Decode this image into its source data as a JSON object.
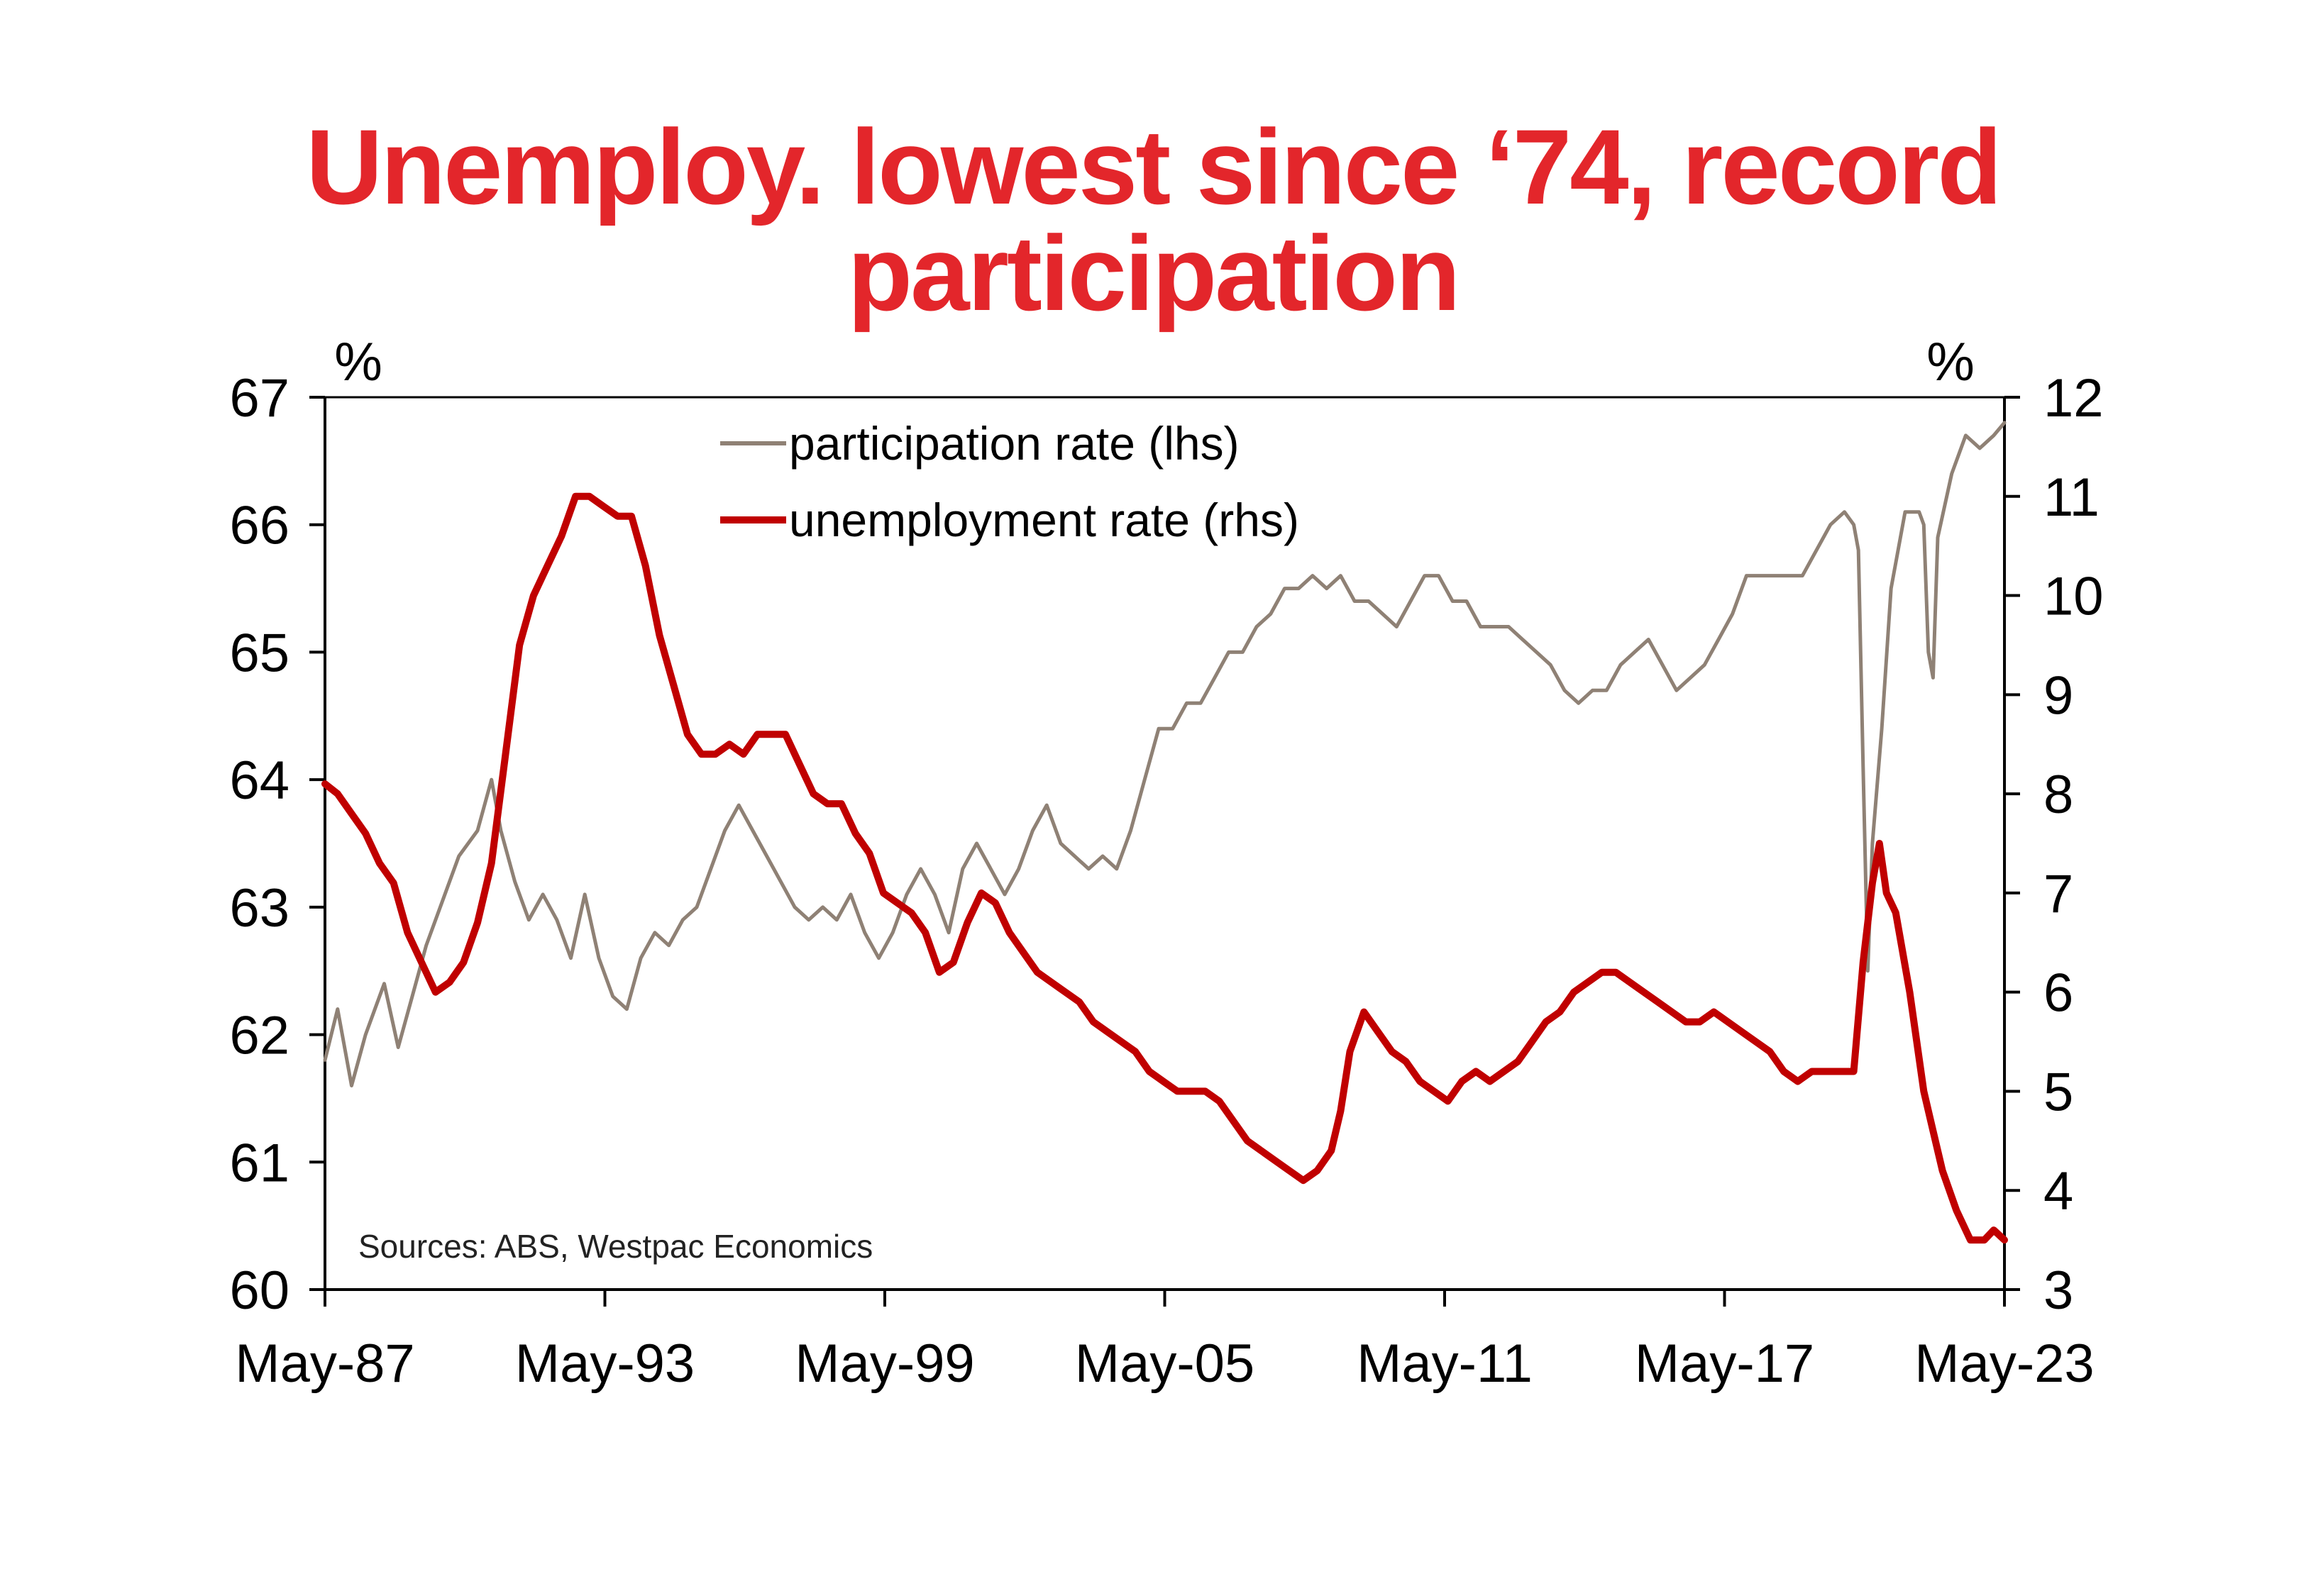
{
  "title": "Unemploy. lowest since ‘74, record participation",
  "colors": {
    "title": "#e3262b",
    "participation": "#8f8175",
    "unemployment": "#c00000",
    "axis": "#000000"
  },
  "chart_data": {
    "type": "line",
    "title": "Unemploy. lowest since ‘74, record participation",
    "left_unit": "%",
    "right_unit": "%",
    "source": "Sources: ABS, Westpac Economics",
    "ylim_left": [
      60,
      67
    ],
    "ylim_right": [
      3,
      12
    ],
    "yticks_left": [
      "60",
      "61",
      "62",
      "63",
      "64",
      "65",
      "66",
      "67"
    ],
    "yticks_right": [
      "3",
      "4",
      "5",
      "6",
      "7",
      "8",
      "9",
      "10",
      "11",
      "12"
    ],
    "xlim": [
      1987.33,
      2023.33
    ],
    "xticks": [
      {
        "x": 1987.33,
        "label": "May-87"
      },
      {
        "x": 1993.33,
        "label": "May-93"
      },
      {
        "x": 1999.33,
        "label": "May-99"
      },
      {
        "x": 2005.33,
        "label": "May-05"
      },
      {
        "x": 2011.33,
        "label": "May-11"
      },
      {
        "x": 2017.33,
        "label": "May-17"
      },
      {
        "x": 2023.33,
        "label": "May-23"
      }
    ],
    "series": [
      {
        "name": "participation rate (lhs)",
        "axis": "left",
        "points": [
          [
            1987.33,
            61.8
          ],
          [
            1987.6,
            62.2
          ],
          [
            1987.9,
            61.6
          ],
          [
            1988.2,
            62.0
          ],
          [
            1988.6,
            62.4
          ],
          [
            1988.9,
            61.9
          ],
          [
            1989.2,
            62.3
          ],
          [
            1989.5,
            62.7
          ],
          [
            1989.9,
            63.1
          ],
          [
            1990.2,
            63.4
          ],
          [
            1990.6,
            63.6
          ],
          [
            1990.9,
            64.0
          ],
          [
            1991.1,
            63.6
          ],
          [
            1991.4,
            63.2
          ],
          [
            1991.7,
            62.9
          ],
          [
            1992.0,
            63.1
          ],
          [
            1992.3,
            62.9
          ],
          [
            1992.6,
            62.6
          ],
          [
            1992.9,
            63.1
          ],
          [
            1993.2,
            62.6
          ],
          [
            1993.5,
            62.3
          ],
          [
            1993.8,
            62.2
          ],
          [
            1994.1,
            62.6
          ],
          [
            1994.4,
            62.8
          ],
          [
            1994.7,
            62.7
          ],
          [
            1995.0,
            62.9
          ],
          [
            1995.3,
            63.0
          ],
          [
            1995.6,
            63.3
          ],
          [
            1995.9,
            63.6
          ],
          [
            1996.2,
            63.8
          ],
          [
            1996.5,
            63.6
          ],
          [
            1996.8,
            63.4
          ],
          [
            1997.1,
            63.2
          ],
          [
            1997.4,
            63.0
          ],
          [
            1997.7,
            62.9
          ],
          [
            1998.0,
            63.0
          ],
          [
            1998.3,
            62.9
          ],
          [
            1998.6,
            63.1
          ],
          [
            1998.9,
            62.8
          ],
          [
            1999.2,
            62.6
          ],
          [
            1999.5,
            62.8
          ],
          [
            1999.8,
            63.1
          ],
          [
            2000.1,
            63.3
          ],
          [
            2000.4,
            63.1
          ],
          [
            2000.7,
            62.8
          ],
          [
            2001.0,
            63.3
          ],
          [
            2001.3,
            63.5
          ],
          [
            2001.6,
            63.3
          ],
          [
            2001.9,
            63.1
          ],
          [
            2002.2,
            63.3
          ],
          [
            2002.5,
            63.6
          ],
          [
            2002.8,
            63.8
          ],
          [
            2003.1,
            63.5
          ],
          [
            2003.4,
            63.4
          ],
          [
            2003.7,
            63.3
          ],
          [
            2004.0,
            63.4
          ],
          [
            2004.3,
            63.3
          ],
          [
            2004.6,
            63.6
          ],
          [
            2004.9,
            64.0
          ],
          [
            2005.2,
            64.4
          ],
          [
            2005.5,
            64.4
          ],
          [
            2005.8,
            64.6
          ],
          [
            2006.1,
            64.6
          ],
          [
            2006.4,
            64.8
          ],
          [
            2006.7,
            65.0
          ],
          [
            2007.0,
            65.0
          ],
          [
            2007.3,
            65.2
          ],
          [
            2007.6,
            65.3
          ],
          [
            2007.9,
            65.5
          ],
          [
            2008.2,
            65.5
          ],
          [
            2008.5,
            65.6
          ],
          [
            2008.8,
            65.5
          ],
          [
            2009.1,
            65.6
          ],
          [
            2009.4,
            65.4
          ],
          [
            2009.7,
            65.4
          ],
          [
            2010.0,
            65.3
          ],
          [
            2010.3,
            65.2
          ],
          [
            2010.6,
            65.4
          ],
          [
            2010.9,
            65.6
          ],
          [
            2011.2,
            65.6
          ],
          [
            2011.5,
            65.4
          ],
          [
            2011.8,
            65.4
          ],
          [
            2012.1,
            65.2
          ],
          [
            2012.4,
            65.2
          ],
          [
            2012.7,
            65.2
          ],
          [
            2013.0,
            65.1
          ],
          [
            2013.3,
            65.0
          ],
          [
            2013.6,
            64.9
          ],
          [
            2013.9,
            64.7
          ],
          [
            2014.2,
            64.6
          ],
          [
            2014.5,
            64.7
          ],
          [
            2014.8,
            64.7
          ],
          [
            2015.1,
            64.9
          ],
          [
            2015.4,
            65.0
          ],
          [
            2015.7,
            65.1
          ],
          [
            2016.0,
            64.9
          ],
          [
            2016.3,
            64.7
          ],
          [
            2016.6,
            64.8
          ],
          [
            2016.9,
            64.9
          ],
          [
            2017.2,
            65.1
          ],
          [
            2017.5,
            65.3
          ],
          [
            2017.8,
            65.6
          ],
          [
            2018.1,
            65.6
          ],
          [
            2018.4,
            65.6
          ],
          [
            2018.7,
            65.6
          ],
          [
            2019.0,
            65.6
          ],
          [
            2019.3,
            65.8
          ],
          [
            2019.6,
            66.0
          ],
          [
            2019.9,
            66.1
          ],
          [
            2020.1,
            66.0
          ],
          [
            2020.2,
            65.8
          ],
          [
            2020.3,
            64.1
          ],
          [
            2020.4,
            62.5
          ],
          [
            2020.5,
            63.5
          ],
          [
            2020.7,
            64.4
          ],
          [
            2020.9,
            65.5
          ],
          [
            2021.2,
            66.1
          ],
          [
            2021.5,
            66.1
          ],
          [
            2021.6,
            66.0
          ],
          [
            2021.7,
            65.0
          ],
          [
            2021.8,
            64.8
          ],
          [
            2021.9,
            65.9
          ],
          [
            2022.2,
            66.4
          ],
          [
            2022.5,
            66.7
          ],
          [
            2022.8,
            66.6
          ],
          [
            2023.1,
            66.7
          ],
          [
            2023.33,
            66.8
          ]
        ]
      },
      {
        "name": "unemployment rate (rhs)",
        "axis": "right",
        "points": [
          [
            1987.33,
            8.1
          ],
          [
            1987.6,
            8.0
          ],
          [
            1987.9,
            7.8
          ],
          [
            1988.2,
            7.6
          ],
          [
            1988.5,
            7.3
          ],
          [
            1988.8,
            7.1
          ],
          [
            1989.1,
            6.6
          ],
          [
            1989.4,
            6.3
          ],
          [
            1989.7,
            6.0
          ],
          [
            1990.0,
            6.1
          ],
          [
            1990.3,
            6.3
          ],
          [
            1990.6,
            6.7
          ],
          [
            1990.9,
            7.3
          ],
          [
            1991.2,
            8.4
          ],
          [
            1991.5,
            9.5
          ],
          [
            1991.8,
            10.0
          ],
          [
            1992.1,
            10.3
          ],
          [
            1992.4,
            10.6
          ],
          [
            1992.7,
            11.0
          ],
          [
            1993.0,
            11.0
          ],
          [
            1993.3,
            10.9
          ],
          [
            1993.6,
            10.8
          ],
          [
            1993.9,
            10.8
          ],
          [
            1994.2,
            10.3
          ],
          [
            1994.5,
            9.6
          ],
          [
            1994.8,
            9.1
          ],
          [
            1995.1,
            8.6
          ],
          [
            1995.4,
            8.4
          ],
          [
            1995.7,
            8.4
          ],
          [
            1996.0,
            8.5
          ],
          [
            1996.3,
            8.4
          ],
          [
            1996.6,
            8.6
          ],
          [
            1996.9,
            8.6
          ],
          [
            1997.2,
            8.6
          ],
          [
            1997.5,
            8.3
          ],
          [
            1997.8,
            8.0
          ],
          [
            1998.1,
            7.9
          ],
          [
            1998.4,
            7.9
          ],
          [
            1998.7,
            7.6
          ],
          [
            1999.0,
            7.4
          ],
          [
            1999.3,
            7.0
          ],
          [
            1999.6,
            6.9
          ],
          [
            1999.9,
            6.8
          ],
          [
            2000.2,
            6.6
          ],
          [
            2000.5,
            6.2
          ],
          [
            2000.8,
            6.3
          ],
          [
            2001.1,
            6.7
          ],
          [
            2001.4,
            7.0
          ],
          [
            2001.7,
            6.9
          ],
          [
            2002.0,
            6.6
          ],
          [
            2002.3,
            6.4
          ],
          [
            2002.6,
            6.2
          ],
          [
            2002.9,
            6.1
          ],
          [
            2003.2,
            6.0
          ],
          [
            2003.5,
            5.9
          ],
          [
            2003.8,
            5.7
          ],
          [
            2004.1,
            5.6
          ],
          [
            2004.4,
            5.5
          ],
          [
            2004.7,
            5.4
          ],
          [
            2005.0,
            5.2
          ],
          [
            2005.3,
            5.1
          ],
          [
            2005.6,
            5.0
          ],
          [
            2005.9,
            5.0
          ],
          [
            2006.2,
            5.0
          ],
          [
            2006.5,
            4.9
          ],
          [
            2006.8,
            4.7
          ],
          [
            2007.1,
            4.5
          ],
          [
            2007.4,
            4.4
          ],
          [
            2007.7,
            4.3
          ],
          [
            2008.0,
            4.2
          ],
          [
            2008.3,
            4.1
          ],
          [
            2008.6,
            4.2
          ],
          [
            2008.9,
            4.4
          ],
          [
            2009.1,
            4.8
          ],
          [
            2009.3,
            5.4
          ],
          [
            2009.6,
            5.8
          ],
          [
            2009.9,
            5.6
          ],
          [
            2010.2,
            5.4
          ],
          [
            2010.5,
            5.3
          ],
          [
            2010.8,
            5.1
          ],
          [
            2011.1,
            5.0
          ],
          [
            2011.4,
            4.9
          ],
          [
            2011.7,
            5.1
          ],
          [
            2012.0,
            5.2
          ],
          [
            2012.3,
            5.1
          ],
          [
            2012.6,
            5.2
          ],
          [
            2012.9,
            5.3
          ],
          [
            2013.2,
            5.5
          ],
          [
            2013.5,
            5.7
          ],
          [
            2013.8,
            5.8
          ],
          [
            2014.1,
            6.0
          ],
          [
            2014.4,
            6.1
          ],
          [
            2014.7,
            6.2
          ],
          [
            2015.0,
            6.2
          ],
          [
            2015.3,
            6.1
          ],
          [
            2015.6,
            6.0
          ],
          [
            2015.9,
            5.9
          ],
          [
            2016.2,
            5.8
          ],
          [
            2016.5,
            5.7
          ],
          [
            2016.8,
            5.7
          ],
          [
            2017.1,
            5.8
          ],
          [
            2017.4,
            5.7
          ],
          [
            2017.7,
            5.6
          ],
          [
            2018.0,
            5.5
          ],
          [
            2018.3,
            5.4
          ],
          [
            2018.6,
            5.2
          ],
          [
            2018.9,
            5.1
          ],
          [
            2019.2,
            5.2
          ],
          [
            2019.5,
            5.2
          ],
          [
            2019.8,
            5.2
          ],
          [
            2020.1,
            5.2
          ],
          [
            2020.3,
            6.3
          ],
          [
            2020.5,
            7.1
          ],
          [
            2020.65,
            7.5
          ],
          [
            2020.8,
            7.0
          ],
          [
            2021.0,
            6.8
          ],
          [
            2021.3,
            6.0
          ],
          [
            2021.6,
            5.0
          ],
          [
            2021.8,
            4.6
          ],
          [
            2022.0,
            4.2
          ],
          [
            2022.3,
            3.8
          ],
          [
            2022.6,
            3.5
          ],
          [
            2022.9,
            3.5
          ],
          [
            2023.1,
            3.6
          ],
          [
            2023.33,
            3.5
          ]
        ]
      }
    ]
  }
}
